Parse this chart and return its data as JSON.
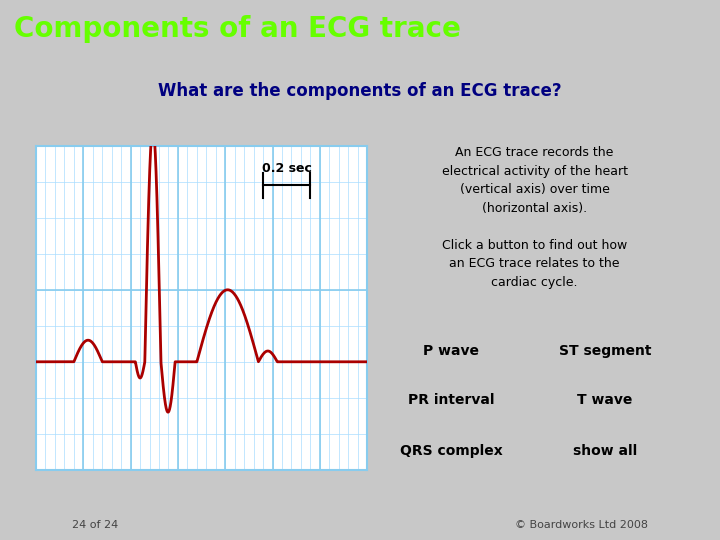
{
  "bg_color": "#c8c8c8",
  "title": "Components of an ECG trace",
  "title_bg": "#1a1a6e",
  "title_color": "#66ff00",
  "title_fontsize": 20,
  "main_bg": "#f0f0f0",
  "main_border": "#999999",
  "header_text": "What are the components of an ECG trace?",
  "header_color": "#000080",
  "header_fontsize": 12,
  "grid_bg": "#ffffff",
  "grid_minor_color": "#aaddff",
  "grid_major_color": "#88ccee",
  "grid_border_color": "#88ccee",
  "ecg_color": "#aa0000",
  "ecg_linewidth": 2.0,
  "scale_label": "0.2 sec",
  "info_text": "An ECG trace records the\nelectrical activity of the heart\n(vertical axis) over time\n(horizontal axis).\n\nClick a button to find out how\nan ECG trace relates to the\ncardiac cycle.",
  "info_bg": "#ffffcc",
  "info_border": "#44aa44",
  "info_fontsize": 9,
  "button_labels": [
    "P wave",
    "ST segment",
    "PR interval",
    "T wave",
    "QRS complex",
    "show all"
  ],
  "button_bg": "#ffffcc",
  "button_border": "#44aa44",
  "button_text_color": "#000000",
  "button_fontsize": 10,
  "footer_left": "24 of 24",
  "footer_right": "© Boardworks Ltd 2008",
  "footer_color": "#444444",
  "footer_fontsize": 8
}
